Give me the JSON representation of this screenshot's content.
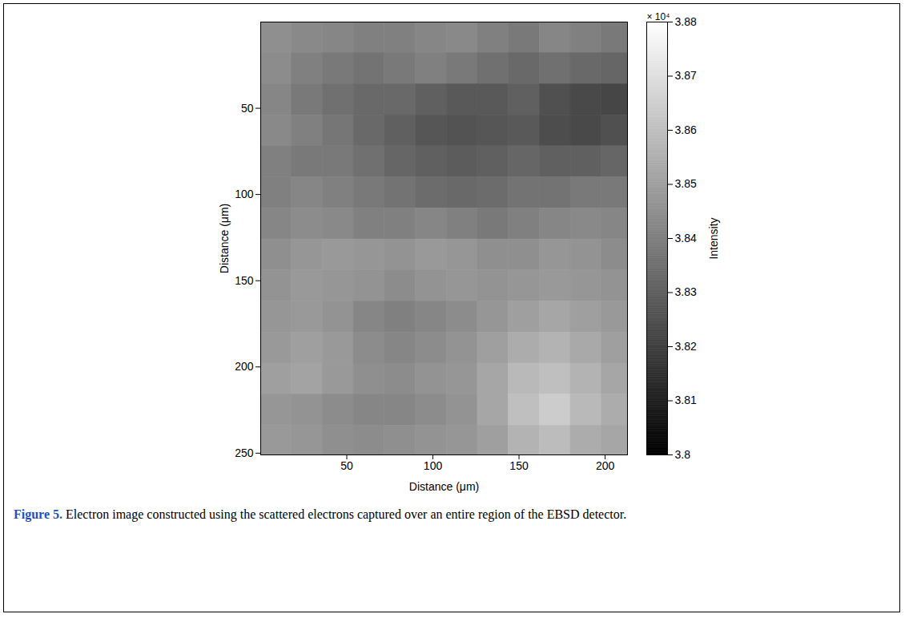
{
  "chart_data": {
    "type": "heatmap",
    "xlabel": "Distance (μm)",
    "ylabel": "Distance (μm)",
    "xlim": [
      0,
      213
    ],
    "ylim": [
      251,
      0
    ],
    "xticks": [
      50,
      100,
      150,
      200
    ],
    "yticks": [
      50,
      100,
      150,
      200,
      250
    ],
    "cells": {
      "x": [
        9,
        27,
        45,
        63,
        81,
        99,
        117,
        135,
        153,
        171,
        189,
        207
      ],
      "y": [
        9,
        27,
        45,
        63,
        81,
        99,
        117,
        135,
        153,
        171,
        189,
        207,
        225,
        243
      ],
      "values": [
        [
          38450,
          38430,
          38420,
          38400,
          38400,
          38420,
          38430,
          38400,
          38380,
          38420,
          38400,
          38380
        ],
        [
          38440,
          38400,
          38380,
          38360,
          38380,
          38400,
          38380,
          38350,
          38330,
          38350,
          38330,
          38320
        ],
        [
          38420,
          38380,
          38350,
          38330,
          38330,
          38300,
          38280,
          38280,
          38300,
          38250,
          38230,
          38220
        ],
        [
          38430,
          38400,
          38370,
          38330,
          38300,
          38270,
          38260,
          38270,
          38280,
          38240,
          38230,
          38250
        ],
        [
          38400,
          38380,
          38380,
          38350,
          38320,
          38300,
          38290,
          38300,
          38320,
          38300,
          38300,
          38320
        ],
        [
          38400,
          38420,
          38400,
          38380,
          38360,
          38340,
          38330,
          38340,
          38360,
          38360,
          38380,
          38380
        ],
        [
          38420,
          38440,
          38430,
          38400,
          38400,
          38420,
          38400,
          38380,
          38400,
          38420,
          38430,
          38420
        ],
        [
          38450,
          38470,
          38480,
          38470,
          38460,
          38480,
          38470,
          38450,
          38450,
          38470,
          38460,
          38440
        ],
        [
          38460,
          38480,
          38470,
          38460,
          38440,
          38460,
          38470,
          38460,
          38470,
          38480,
          38470,
          38460
        ],
        [
          38470,
          38480,
          38460,
          38420,
          38400,
          38420,
          38440,
          38470,
          38500,
          38520,
          38500,
          38480
        ],
        [
          38480,
          38500,
          38480,
          38440,
          38420,
          38440,
          38460,
          38500,
          38540,
          38560,
          38530,
          38500
        ],
        [
          38500,
          38510,
          38480,
          38450,
          38440,
          38460,
          38470,
          38520,
          38580,
          38600,
          38560,
          38520
        ],
        [
          38470,
          38460,
          38440,
          38420,
          38420,
          38440,
          38460,
          38520,
          38600,
          38640,
          38580,
          38540
        ],
        [
          38480,
          38470,
          38450,
          38440,
          38450,
          38460,
          38470,
          38500,
          38560,
          38590,
          38540,
          38520
        ]
      ]
    },
    "colorbar_label": "Intensity",
    "colorbar_exponent": "× 10⁴",
    "clim": [
      38000,
      38800
    ],
    "cticks": [
      {
        "value": 38000,
        "label": "3.8"
      },
      {
        "value": 38100,
        "label": "3.81"
      },
      {
        "value": 38200,
        "label": "3.82"
      },
      {
        "value": 38300,
        "label": "3.83"
      },
      {
        "value": 38400,
        "label": "3.84"
      },
      {
        "value": 38500,
        "label": "3.85"
      },
      {
        "value": 38600,
        "label": "3.86"
      },
      {
        "value": 38700,
        "label": "3.87"
      },
      {
        "value": 38800,
        "label": "3.88"
      }
    ],
    "caption_label": "Figure 5.",
    "caption": "Electron image constructed using the scattered electrons captured over an entire region of the EBSD detector."
  }
}
